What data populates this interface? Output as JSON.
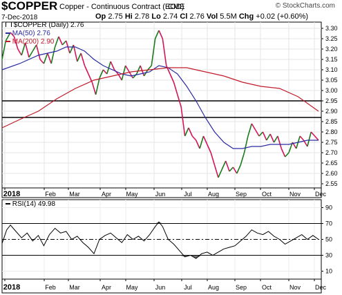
{
  "header": {
    "symbol": "$COPPER",
    "name": "Copper - Continuous Contract (EOD)",
    "exchange": "CME",
    "brand": "© StockCharts.com",
    "date": "7-Dec-2018",
    "quote": {
      "open_label": "Op",
      "open": "2.75",
      "high_label": "Hi",
      "high": "2.78",
      "low_label": "Lo",
      "low": "2.74",
      "close_label": "Cl",
      "close": "2.76",
      "vol_label": "Vol",
      "vol": "5.5M",
      "chg_label": "Chg",
      "chg": "+0.02 (+0.60%)"
    }
  },
  "legend": {
    "price": "$COPPER (Daily) 2.76",
    "ma50": "MA(50) 2.76",
    "ma200": "MA(200) 2.90",
    "rsi": "RSI(14) 49.98"
  },
  "colors": {
    "up": "#1a7a1a",
    "down": "#d4145a",
    "ma50": "#2a2aa0",
    "ma200": "#c01a2a",
    "rsi_line": "#000000",
    "rsi_fill": "#333333"
  },
  "chart_data": [
    {
      "type": "line",
      "title": "$COPPER (Daily)",
      "xaxis": [
        "2018",
        "Feb",
        "Mar",
        "Apr",
        "May",
        "Jun",
        "Jul",
        "Aug",
        "Sep",
        "Oct",
        "Nov",
        "Dec"
      ],
      "y_ticks": [
        "2.55",
        "2.60",
        "2.65",
        "2.70",
        "2.75",
        "2.80",
        "2.85",
        "2.90",
        "2.95",
        "3.00",
        "3.05",
        "3.10",
        "3.15",
        "3.20",
        "3.25",
        "3.30"
      ],
      "ylim": [
        2.53,
        3.33
      ],
      "x_range": [
        1,
        342
      ],
      "horizontal_lines": [
        2.95,
        2.87
      ],
      "series": [
        {
          "name": "$COPPER",
          "points": [
            [
              1,
              3.15
            ],
            [
              5,
              3.24
            ],
            [
              10,
              3.28
            ],
            [
              14,
              3.26
            ],
            [
              18,
              3.2
            ],
            [
              22,
              3.17
            ],
            [
              26,
              3.23
            ],
            [
              30,
              3.16
            ],
            [
              34,
              3.19
            ],
            [
              38,
              3.22
            ],
            [
              42,
              3.15
            ],
            [
              46,
              3.13
            ],
            [
              50,
              3.18
            ],
            [
              54,
              3.13
            ],
            [
              58,
              3.21
            ],
            [
              62,
              3.26
            ],
            [
              66,
              3.22
            ],
            [
              70,
              3.24
            ],
            [
              74,
              3.18
            ],
            [
              78,
              3.22
            ],
            [
              82,
              3.14
            ],
            [
              86,
              3.18
            ],
            [
              90,
              3.12
            ],
            [
              94,
              3.08
            ],
            [
              98,
              3.04
            ],
            [
              102,
              2.98
            ],
            [
              106,
              3.06
            ],
            [
              110,
              3.1
            ],
            [
              114,
              3.08
            ],
            [
              118,
              3.14
            ],
            [
              122,
              3.1
            ],
            [
              126,
              3.08
            ],
            [
              130,
              3.05
            ],
            [
              134,
              3.12
            ],
            [
              138,
              3.09
            ],
            [
              142,
              3.06
            ],
            [
              146,
              3.08
            ],
            [
              150,
              3.12
            ],
            [
              154,
              3.07
            ],
            [
              158,
              3.1
            ],
            [
              162,
              3.12
            ],
            [
              166,
              3.25
            ],
            [
              170,
              3.29
            ],
            [
              174,
              3.25
            ],
            [
              178,
              3.12
            ],
            [
              182,
              3.08
            ],
            [
              186,
              3.04
            ],
            [
              190,
              2.98
            ],
            [
              194,
              2.92
            ],
            [
              198,
              2.78
            ],
            [
              202,
              2.82
            ],
            [
              206,
              2.78
            ],
            [
              210,
              2.76
            ],
            [
              214,
              2.72
            ],
            [
              218,
              2.78
            ],
            [
              222,
              2.74
            ],
            [
              226,
              2.7
            ],
            [
              230,
              2.64
            ],
            [
              234,
              2.58
            ],
            [
              238,
              2.62
            ],
            [
              242,
              2.66
            ],
            [
              246,
              2.61
            ],
            [
              250,
              2.63
            ],
            [
              254,
              2.6
            ],
            [
              258,
              2.64
            ],
            [
              262,
              2.7
            ],
            [
              266,
              2.78
            ],
            [
              270,
              2.84
            ],
            [
              274,
              2.81
            ],
            [
              278,
              2.78
            ],
            [
              282,
              2.8
            ],
            [
              286,
              2.76
            ],
            [
              290,
              2.79
            ],
            [
              294,
              2.75
            ],
            [
              298,
              2.78
            ],
            [
              302,
              2.72
            ],
            [
              306,
              2.68
            ],
            [
              310,
              2.7
            ],
            [
              314,
              2.75
            ],
            [
              318,
              2.72
            ],
            [
              322,
              2.78
            ],
            [
              326,
              2.76
            ],
            [
              330,
              2.73
            ],
            [
              334,
              2.8
            ],
            [
              338,
              2.78
            ],
            [
              342,
              2.76
            ]
          ]
        },
        {
          "name": "MA(50)",
          "points": [
            [
              1,
              3.1
            ],
            [
              20,
              3.13
            ],
            [
              40,
              3.17
            ],
            [
              60,
              3.19
            ],
            [
              70,
              3.21
            ],
            [
              80,
              3.21
            ],
            [
              90,
              3.19
            ],
            [
              100,
              3.15
            ],
            [
              110,
              3.12
            ],
            [
              120,
              3.1
            ],
            [
              130,
              3.08
            ],
            [
              140,
              3.07
            ],
            [
              150,
              3.08
            ],
            [
              160,
              3.09
            ],
            [
              170,
              3.12
            ],
            [
              180,
              3.11
            ],
            [
              190,
              3.08
            ],
            [
              200,
              3.02
            ],
            [
              210,
              2.95
            ],
            [
              220,
              2.87
            ],
            [
              230,
              2.8
            ],
            [
              240,
              2.75
            ],
            [
              250,
              2.72
            ],
            [
              260,
              2.72
            ],
            [
              270,
              2.73
            ],
            [
              280,
              2.73
            ],
            [
              290,
              2.74
            ],
            [
              300,
              2.74
            ],
            [
              310,
              2.74
            ],
            [
              320,
              2.75
            ],
            [
              330,
              2.76
            ],
            [
              342,
              2.76
            ]
          ]
        },
        {
          "name": "MA(200)",
          "points": [
            [
              1,
              2.82
            ],
            [
              20,
              2.86
            ],
            [
              40,
              2.9
            ],
            [
              60,
              2.96
            ],
            [
              80,
              3.01
            ],
            [
              100,
              3.05
            ],
            [
              120,
              3.07
            ],
            [
              140,
              3.09
            ],
            [
              160,
              3.1
            ],
            [
              180,
              3.11
            ],
            [
              200,
              3.11
            ],
            [
              220,
              3.09
            ],
            [
              240,
              3.07
            ],
            [
              260,
              3.04
            ],
            [
              280,
              3.02
            ],
            [
              300,
              3.01
            ],
            [
              320,
              2.97
            ],
            [
              342,
              2.9
            ]
          ]
        }
      ]
    },
    {
      "type": "line",
      "title": "RSI(14)",
      "xaxis": [
        "2018",
        "Feb",
        "Mar",
        "Apr",
        "May",
        "Jun",
        "Jul",
        "Aug",
        "Sep",
        "Oct",
        "Nov",
        "Dec"
      ],
      "y_ticks": [
        "10",
        "30",
        "50",
        "70",
        "90"
      ],
      "ylim": [
        0,
        100
      ],
      "x_range": [
        1,
        342
      ],
      "reference_lines": [
        70,
        50,
        30
      ],
      "series": [
        {
          "name": "RSI(14)",
          "points": [
            [
              1,
              45
            ],
            [
              6,
              62
            ],
            [
              10,
              68
            ],
            [
              16,
              60
            ],
            [
              22,
              52
            ],
            [
              28,
              58
            ],
            [
              34,
              48
            ],
            [
              40,
              55
            ],
            [
              46,
              42
            ],
            [
              52,
              56
            ],
            [
              58,
              64
            ],
            [
              64,
              58
            ],
            [
              70,
              60
            ],
            [
              76,
              50
            ],
            [
              82,
              54
            ],
            [
              88,
              46
            ],
            [
              94,
              40
            ],
            [
              100,
              32
            ],
            [
              106,
              50
            ],
            [
              112,
              55
            ],
            [
              118,
              58
            ],
            [
              124,
              52
            ],
            [
              130,
              46
            ],
            [
              136,
              56
            ],
            [
              142,
              50
            ],
            [
              148,
              54
            ],
            [
              154,
              48
            ],
            [
              160,
              56
            ],
            [
              166,
              66
            ],
            [
              170,
              72
            ],
            [
              174,
              66
            ],
            [
              180,
              50
            ],
            [
              186,
              44
            ],
            [
              192,
              36
            ],
            [
              198,
              28
            ],
            [
              204,
              30
            ],
            [
              210,
              26
            ],
            [
              216,
              32
            ],
            [
              222,
              34
            ],
            [
              228,
              30
            ],
            [
              234,
              34
            ],
            [
              240,
              38
            ],
            [
              246,
              40
            ],
            [
              252,
              42
            ],
            [
              258,
              48
            ],
            [
              264,
              54
            ],
            [
              270,
              62
            ],
            [
              276,
              58
            ],
            [
              282,
              56
            ],
            [
              288,
              60
            ],
            [
              294,
              54
            ],
            [
              300,
              50
            ],
            [
              306,
              44
            ],
            [
              312,
              48
            ],
            [
              318,
              52
            ],
            [
              324,
              56
            ],
            [
              330,
              50
            ],
            [
              336,
              55
            ],
            [
              342,
              50
            ]
          ]
        }
      ]
    }
  ]
}
